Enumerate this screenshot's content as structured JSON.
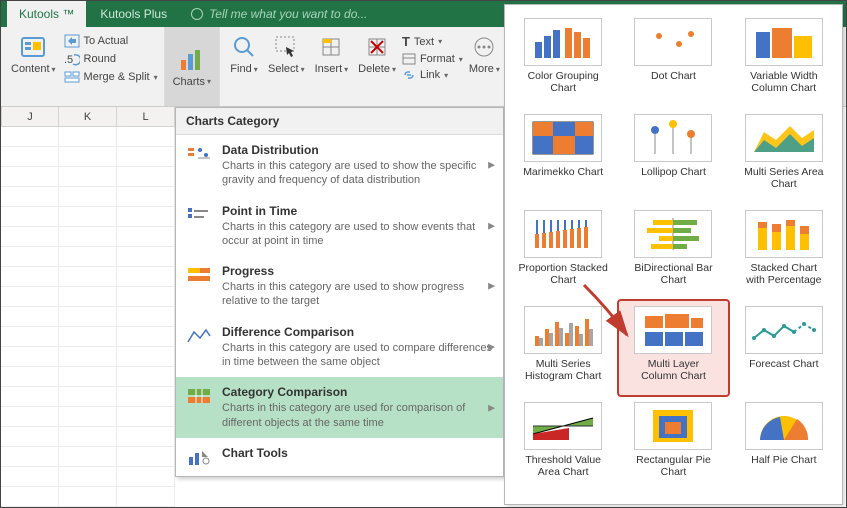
{
  "tabs": {
    "active": "Kutools ™",
    "inactive": "Kutools Plus",
    "tell_me": "Tell me what you want to do..."
  },
  "ribbon": {
    "content": "Content",
    "to_actual": "To Actual",
    "round": "Round",
    "merge_split": "Merge & Split",
    "charts": "Charts",
    "find": "Find",
    "select": "Select",
    "insert": "Insert",
    "delete": "Delete",
    "text": "Text",
    "format": "Format",
    "link": "Link",
    "more": "More"
  },
  "columns": [
    "J",
    "K",
    "L"
  ],
  "dropdown": {
    "title": "Charts Category",
    "items": [
      {
        "title": "Data Distribution",
        "desc": "Charts in this category are used to show the specific gravity and frequency of data distribution"
      },
      {
        "title": "Point in Time",
        "desc": "Charts in this category are used to show events that occur at point in time"
      },
      {
        "title": "Progress",
        "desc": "Charts in this category are used to show progress relative to the target"
      },
      {
        "title": "Difference Comparison",
        "desc": "Charts in this category are used to compare differences in time between the same object"
      },
      {
        "title": "Category Comparison",
        "desc": "Charts in this category are used for comparison of different objects at the same time"
      },
      {
        "title": "Chart Tools",
        "desc": ""
      }
    ],
    "selected_index": 4
  },
  "gallery": [
    {
      "label": "Color Grouping\nChart"
    },
    {
      "label": "Dot Chart"
    },
    {
      "label": "Variable Width\nColumn Chart"
    },
    {
      "label": "Marimekko Chart"
    },
    {
      "label": "Lollipop Chart"
    },
    {
      "label": "Multi Series Area\nChart"
    },
    {
      "label": "Proportion Stacked\nChart"
    },
    {
      "label": "BiDirectional Bar\nChart"
    },
    {
      "label": "Stacked Chart\nwith Percentage"
    },
    {
      "label": "Multi Series\nHistogram Chart"
    },
    {
      "label": "Multi Layer\nColumn Chart"
    },
    {
      "label": "Forecast Chart"
    },
    {
      "label": "Threshold Value\nArea Chart"
    },
    {
      "label": "Rectangular Pie\nChart"
    },
    {
      "label": "Half Pie Chart"
    }
  ],
  "gallery_highlight_index": 10,
  "colors": {
    "green": "#217346",
    "orange": "#ed7d31",
    "blue": "#4472c4",
    "yellow": "#ffc000",
    "teal": "#2e9999",
    "red": "#c13c2f",
    "grid": "#c9c9c9",
    "panel_bg": "#f1f1f1",
    "sel_bg": "#b7e1c6"
  }
}
